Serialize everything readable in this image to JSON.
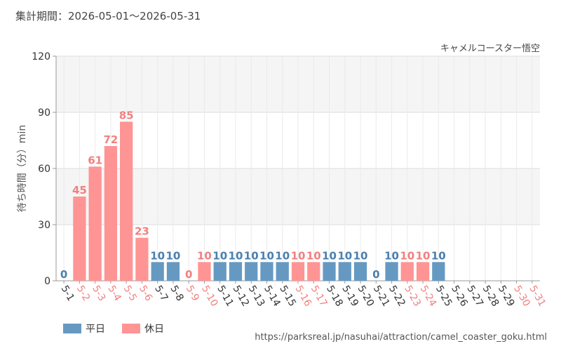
{
  "header": {
    "period": "集計期間：2026-05-01～2026-05-31"
  },
  "chart_data": {
    "type": "bar",
    "series_title": "キャメルコースター悟空",
    "ylabel": "待ち時間（分）min",
    "ylim": [
      0,
      120
    ],
    "yticks": [
      0,
      30,
      60,
      90,
      120
    ],
    "categories": [
      "5-1",
      "5-2",
      "5-3",
      "5-4",
      "5-5",
      "5-6",
      "5-7",
      "5-8",
      "5-9",
      "5-10",
      "5-11",
      "5-12",
      "5-13",
      "5-14",
      "5-15",
      "5-16",
      "5-17",
      "5-18",
      "5-19",
      "5-20",
      "5-21",
      "5-22",
      "5-23",
      "5-24",
      "5-25",
      "5-26",
      "5-27",
      "5-28",
      "5-29",
      "5-30",
      "5-31"
    ],
    "values": [
      0,
      45,
      61,
      72,
      85,
      23,
      10,
      10,
      0,
      10,
      10,
      10,
      10,
      10,
      10,
      10,
      10,
      10,
      10,
      10,
      0,
      10,
      10,
      10,
      10,
      null,
      null,
      null,
      null,
      null,
      null
    ],
    "day_type": [
      "weekday",
      "holiday",
      "holiday",
      "holiday",
      "holiday",
      "holiday",
      "weekday",
      "weekday",
      "holiday",
      "holiday",
      "weekday",
      "weekday",
      "weekday",
      "weekday",
      "weekday",
      "holiday",
      "holiday",
      "weekday",
      "weekday",
      "weekday",
      "weekday",
      "weekday",
      "holiday",
      "holiday",
      "weekday",
      "weekday",
      "weekday",
      "weekday",
      "weekday",
      "holiday",
      "holiday"
    ],
    "legend": [
      {
        "key": "weekday",
        "label": "平日",
        "color": "#6699c2"
      },
      {
        "key": "holiday",
        "label": "休日",
        "color": "#ff9494"
      }
    ],
    "colors": {
      "weekday_bar": "#6699c2",
      "holiday_bar": "#ff9494",
      "weekday_text": "#4a7fae",
      "holiday_text": "#f08080",
      "axis_text": "#333333",
      "band": "#f5f5f5",
      "grid": "#dddddd"
    }
  },
  "footer": {
    "source": "https://parksreal.jp/nasuhai/attraction/camel_coaster_goku.html"
  }
}
